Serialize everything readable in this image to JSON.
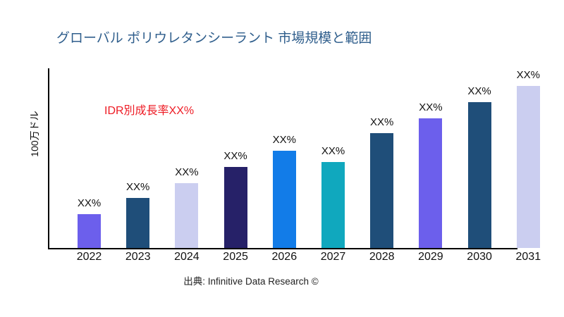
{
  "page": {
    "background": "#ffffff"
  },
  "header": {
    "title": "グローバル ポリウレタンシーラント 市場規模と範囲",
    "title_color": "#2F5E8C"
  },
  "source_caption": "出典: Infinitive Data Research ©",
  "chart_data": {
    "type": "bar",
    "title": "グローバル ポリウレタンシーラント 市場規模と範囲",
    "xlabel": "",
    "ylabel": "100万ドル",
    "categories": [
      "2022",
      "2023",
      "2024",
      "2025",
      "2026",
      "2027",
      "2028",
      "2029",
      "2030",
      "2031"
    ],
    "values": [
      21,
      31,
      40,
      50,
      60,
      53,
      71,
      80,
      90,
      100
    ],
    "values_note": "relative bar heights in percent of tallest bar (2031); no numeric y-axis ticks are shown in the figure",
    "value_labels": [
      "XX%",
      "XX%",
      "XX%",
      "XX%",
      "XX%",
      "XX%",
      "XX%",
      "XX%",
      "XX%",
      "XX%"
    ],
    "bar_colors": [
      "#6C5FEC",
      "#1F4E79",
      "#CBCEF0",
      "#262168",
      "#127CE8",
      "#10A8BE",
      "#1F4E79",
      "#6C5FEC",
      "#1F4E79",
      "#CBCEF0"
    ],
    "annotation": "IDR別成長率XX%",
    "annotation_color": "#EE1B24",
    "axis_color": "#000000",
    "grid": false,
    "legend": false
  }
}
